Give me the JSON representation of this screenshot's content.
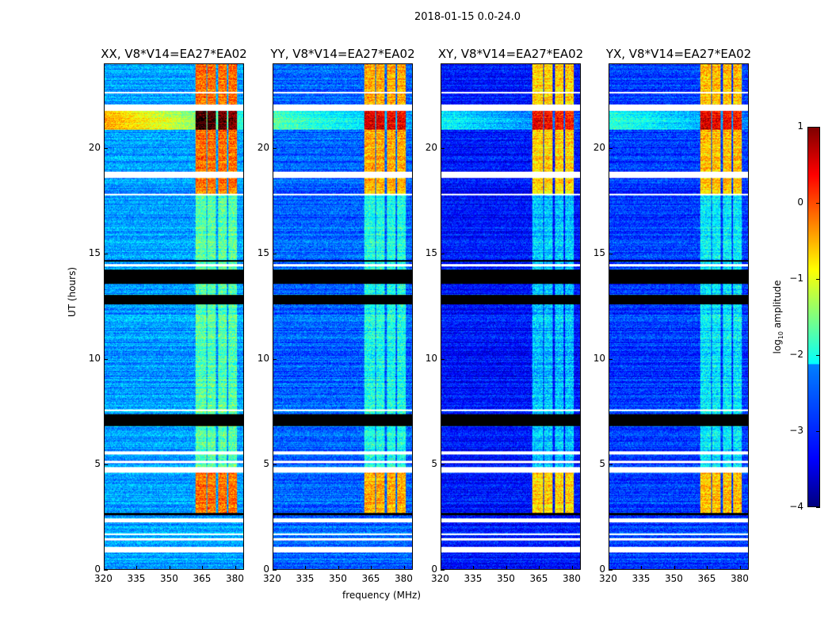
{
  "chart_data": {
    "type": "heatmap",
    "title": "2018-01-15 0.0-24.0",
    "xlabel": "frequency (MHz)",
    "ylabel": "UT (hours)",
    "xlim": [
      320,
      384
    ],
    "ylim": [
      0,
      24
    ],
    "xticks": [
      320,
      335,
      350,
      365,
      380
    ],
    "yticks": [
      0,
      5,
      10,
      15,
      20
    ],
    "colormap": "jet",
    "colorbar": {
      "label": "log10 amplitude",
      "label_base": "log",
      "label_sub": "10",
      "label_rest": " amplitude",
      "range": [
        -4,
        1
      ],
      "ticks": [
        1,
        0,
        -1,
        -2,
        -3,
        -4
      ]
    },
    "panels": [
      {
        "title": "XX, V8*V14=EA27*EA02",
        "baseline": -2.6,
        "rfi_boost": 2.3
      },
      {
        "title": "YY, V8*V14=EA27*EA02",
        "baseline": -2.9,
        "rfi_boost": 2.3
      },
      {
        "title": "XY, V8*V14=EA27*EA02",
        "baseline": -3.3,
        "rfi_boost": 2.5
      },
      {
        "title": "YX, V8*V14=EA27*EA02",
        "baseline": -3.1,
        "rfi_boost": 2.4
      }
    ],
    "rfi_channels_mhz": [
      [
        362,
        367
      ],
      [
        367.5,
        371.5
      ],
      [
        372.5,
        376.5
      ],
      [
        377,
        381
      ]
    ],
    "rfi_strong_hours": [
      [
        17.8,
        24
      ],
      [
        2.6,
        4.6
      ]
    ],
    "rfi_weak_hours": [
      [
        4.6,
        17.8
      ]
    ],
    "strong_band_hours": [
      [
        20.9,
        21.9
      ]
    ],
    "flagged_white_hours": [
      [
        0.8,
        1.05
      ],
      [
        1.35,
        1.45
      ],
      [
        1.6,
        1.7
      ],
      [
        2.2,
        2.4
      ],
      [
        4.6,
        4.85
      ],
      [
        5.05,
        5.15
      ],
      [
        5.45,
        5.6
      ],
      [
        7.5,
        7.6
      ],
      [
        14.4,
        14.5
      ],
      [
        17.75,
        17.85
      ],
      [
        18.6,
        18.9
      ],
      [
        21.8,
        22.1
      ],
      [
        22.6,
        22.7
      ]
    ],
    "flagged_black_hours": [
      [
        2.55,
        2.65
      ],
      [
        6.8,
        7.35
      ],
      [
        12.6,
        13.05
      ],
      [
        13.55,
        14.25
      ],
      [
        14.6,
        14.7
      ]
    ]
  }
}
